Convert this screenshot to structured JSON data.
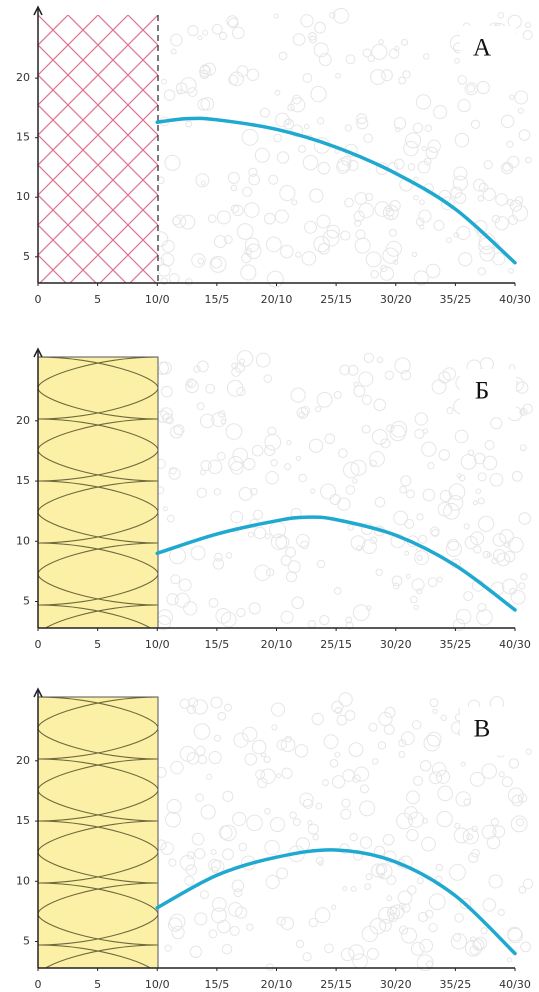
{
  "chart_data": [
    {
      "type": "line",
      "annotation": "А",
      "x": [
        10,
        12.5,
        15,
        20,
        25,
        30,
        35,
        40
      ],
      "values": [
        16.3,
        16.6,
        16.5,
        15.7,
        14.2,
        12,
        9,
        4.5
      ],
      "color": "#1fa8d0",
      "xlim": [
        0,
        40
      ],
      "ylim": [
        2.8,
        25.3
      ],
      "xticks": [
        0,
        5,
        {
          "value": 10,
          "label": "10/0"
        },
        {
          "value": 15,
          "label": "15/5"
        },
        {
          "value": 20,
          "label": "20/10"
        },
        {
          "value": 25,
          "label": "25/15"
        },
        {
          "value": 30,
          "label": "30/20"
        },
        {
          "value": 35,
          "label": "35/25"
        },
        {
          "value": 40,
          "label": "40/30"
        }
      ],
      "yticks": [
        5,
        10,
        15,
        20
      ]
    },
    {
      "type": "line",
      "annotation": "Б",
      "x": [
        10,
        15,
        20,
        22.5,
        25,
        30,
        35,
        40
      ],
      "values": [
        9,
        10.6,
        11.7,
        12,
        11.8,
        10.5,
        8,
        4.3
      ],
      "color": "#1fa8d0",
      "xlim": [
        0,
        40
      ],
      "ylim": [
        2.8,
        25.3
      ],
      "xticks": [
        0,
        5,
        {
          "value": 10,
          "label": "10/0"
        },
        {
          "value": 15,
          "label": "15/5"
        },
        {
          "value": 20,
          "label": "20/10"
        },
        {
          "value": 25,
          "label": "25/15"
        },
        {
          "value": 30,
          "label": "30/20"
        },
        {
          "value": 35,
          "label": "35/25"
        },
        {
          "value": 40,
          "label": "40/30"
        }
      ],
      "yticks": [
        5,
        10,
        15,
        20
      ]
    },
    {
      "type": "line",
      "annotation": "В",
      "x": [
        10,
        15,
        20,
        25,
        30,
        35,
        40
      ],
      "values": [
        7.8,
        10.5,
        12,
        12.6,
        11.6,
        8.8,
        4
      ],
      "color": "#1fa8d0",
      "xlim": [
        0,
        40
      ],
      "ylim": [
        2.8,
        25.3
      ],
      "xticks": [
        0,
        5,
        {
          "value": 10,
          "label": "10/0"
        },
        {
          "value": 15,
          "label": "15/5"
        },
        {
          "value": 20,
          "label": "20/10"
        },
        {
          "value": 25,
          "label": "25/15"
        },
        {
          "value": 30,
          "label": "30/20"
        },
        {
          "value": 35,
          "label": "35/25"
        },
        {
          "value": 40,
          "label": "40/30"
        }
      ],
      "yticks": [
        5,
        10,
        15,
        20
      ]
    }
  ]
}
